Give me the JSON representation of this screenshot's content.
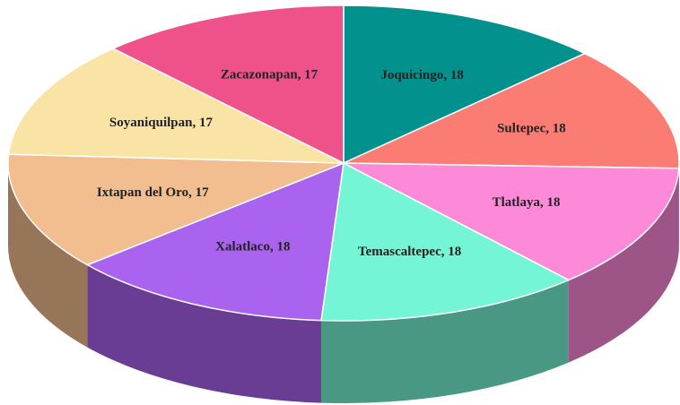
{
  "chart_data": {
    "type": "pie3d",
    "categories": [
      "Joquicingo",
      "Sultepec",
      "Tlatlaya",
      "Temascaltepec",
      "Xalatlaco",
      "Ixtapan del Oro",
      "Soyaniquilpan",
      "Zacazonapan"
    ],
    "values": [
      18,
      18,
      18,
      18,
      18,
      17,
      17,
      17
    ],
    "value_labels": [
      "Joquicingo, 18",
      "Sultepec, 18",
      "Tlatlaya, 18",
      "Temascaltepec, 18",
      "Xalatlaco, 18",
      "Ixtapan del Oro, 17",
      "Soyaniquilpan, 17",
      "Zacazonapan, 17"
    ],
    "colors": [
      "#03918d",
      "#fa7c73",
      "#fc8ad9",
      "#74f6d6",
      "#a963ee",
      "#f2bd8f",
      "#fae4a5",
      "#ef518a"
    ]
  }
}
